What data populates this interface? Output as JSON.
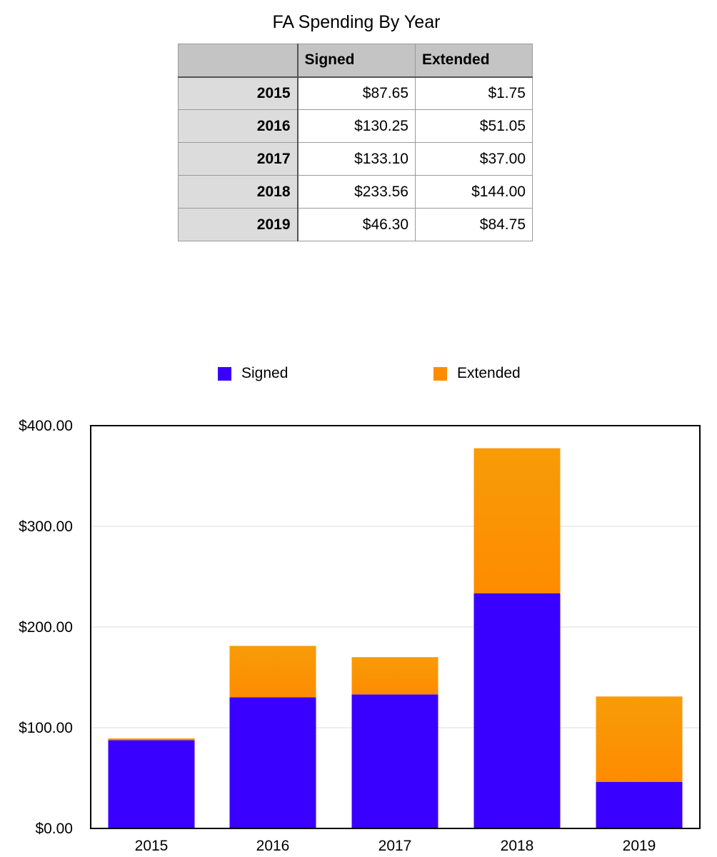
{
  "title": "FA Spending By Year",
  "table": {
    "headers": [
      "",
      "Signed",
      "Extended"
    ],
    "rows": [
      {
        "year": "2015",
        "signed": "$87.65",
        "extended": "$1.75"
      },
      {
        "year": "2016",
        "signed": "$130.25",
        "extended": "$51.05"
      },
      {
        "year": "2017",
        "signed": "$133.10",
        "extended": "$37.00"
      },
      {
        "year": "2018",
        "signed": "$233.56",
        "extended": "$144.00"
      },
      {
        "year": "2019",
        "signed": "$46.30",
        "extended": "$84.75"
      }
    ]
  },
  "legend": {
    "signed": "Signed",
    "extended": "Extended"
  },
  "colors": {
    "signed": "#3a00ff",
    "extended_top": "#f79c08",
    "extended_bottom": "#ff8c00",
    "grid": "#dddddd",
    "axis": "#000000"
  },
  "chart_data": {
    "type": "bar",
    "stacked": true,
    "title": "FA Spending By Year",
    "categories": [
      "2015",
      "2016",
      "2017",
      "2018",
      "2019"
    ],
    "series": [
      {
        "name": "Signed",
        "values": [
          87.65,
          130.25,
          133.1,
          233.56,
          46.3
        ]
      },
      {
        "name": "Extended",
        "values": [
          1.75,
          51.05,
          37.0,
          144.0,
          84.75
        ]
      }
    ],
    "ylim": [
      0,
      400
    ],
    "yticks": [
      0,
      100,
      200,
      300,
      400
    ],
    "ytick_labels": [
      "$0.00",
      "$100.00",
      "$200.00",
      "$300.00",
      "$400.00"
    ],
    "grid": true,
    "legend_position": "top"
  }
}
